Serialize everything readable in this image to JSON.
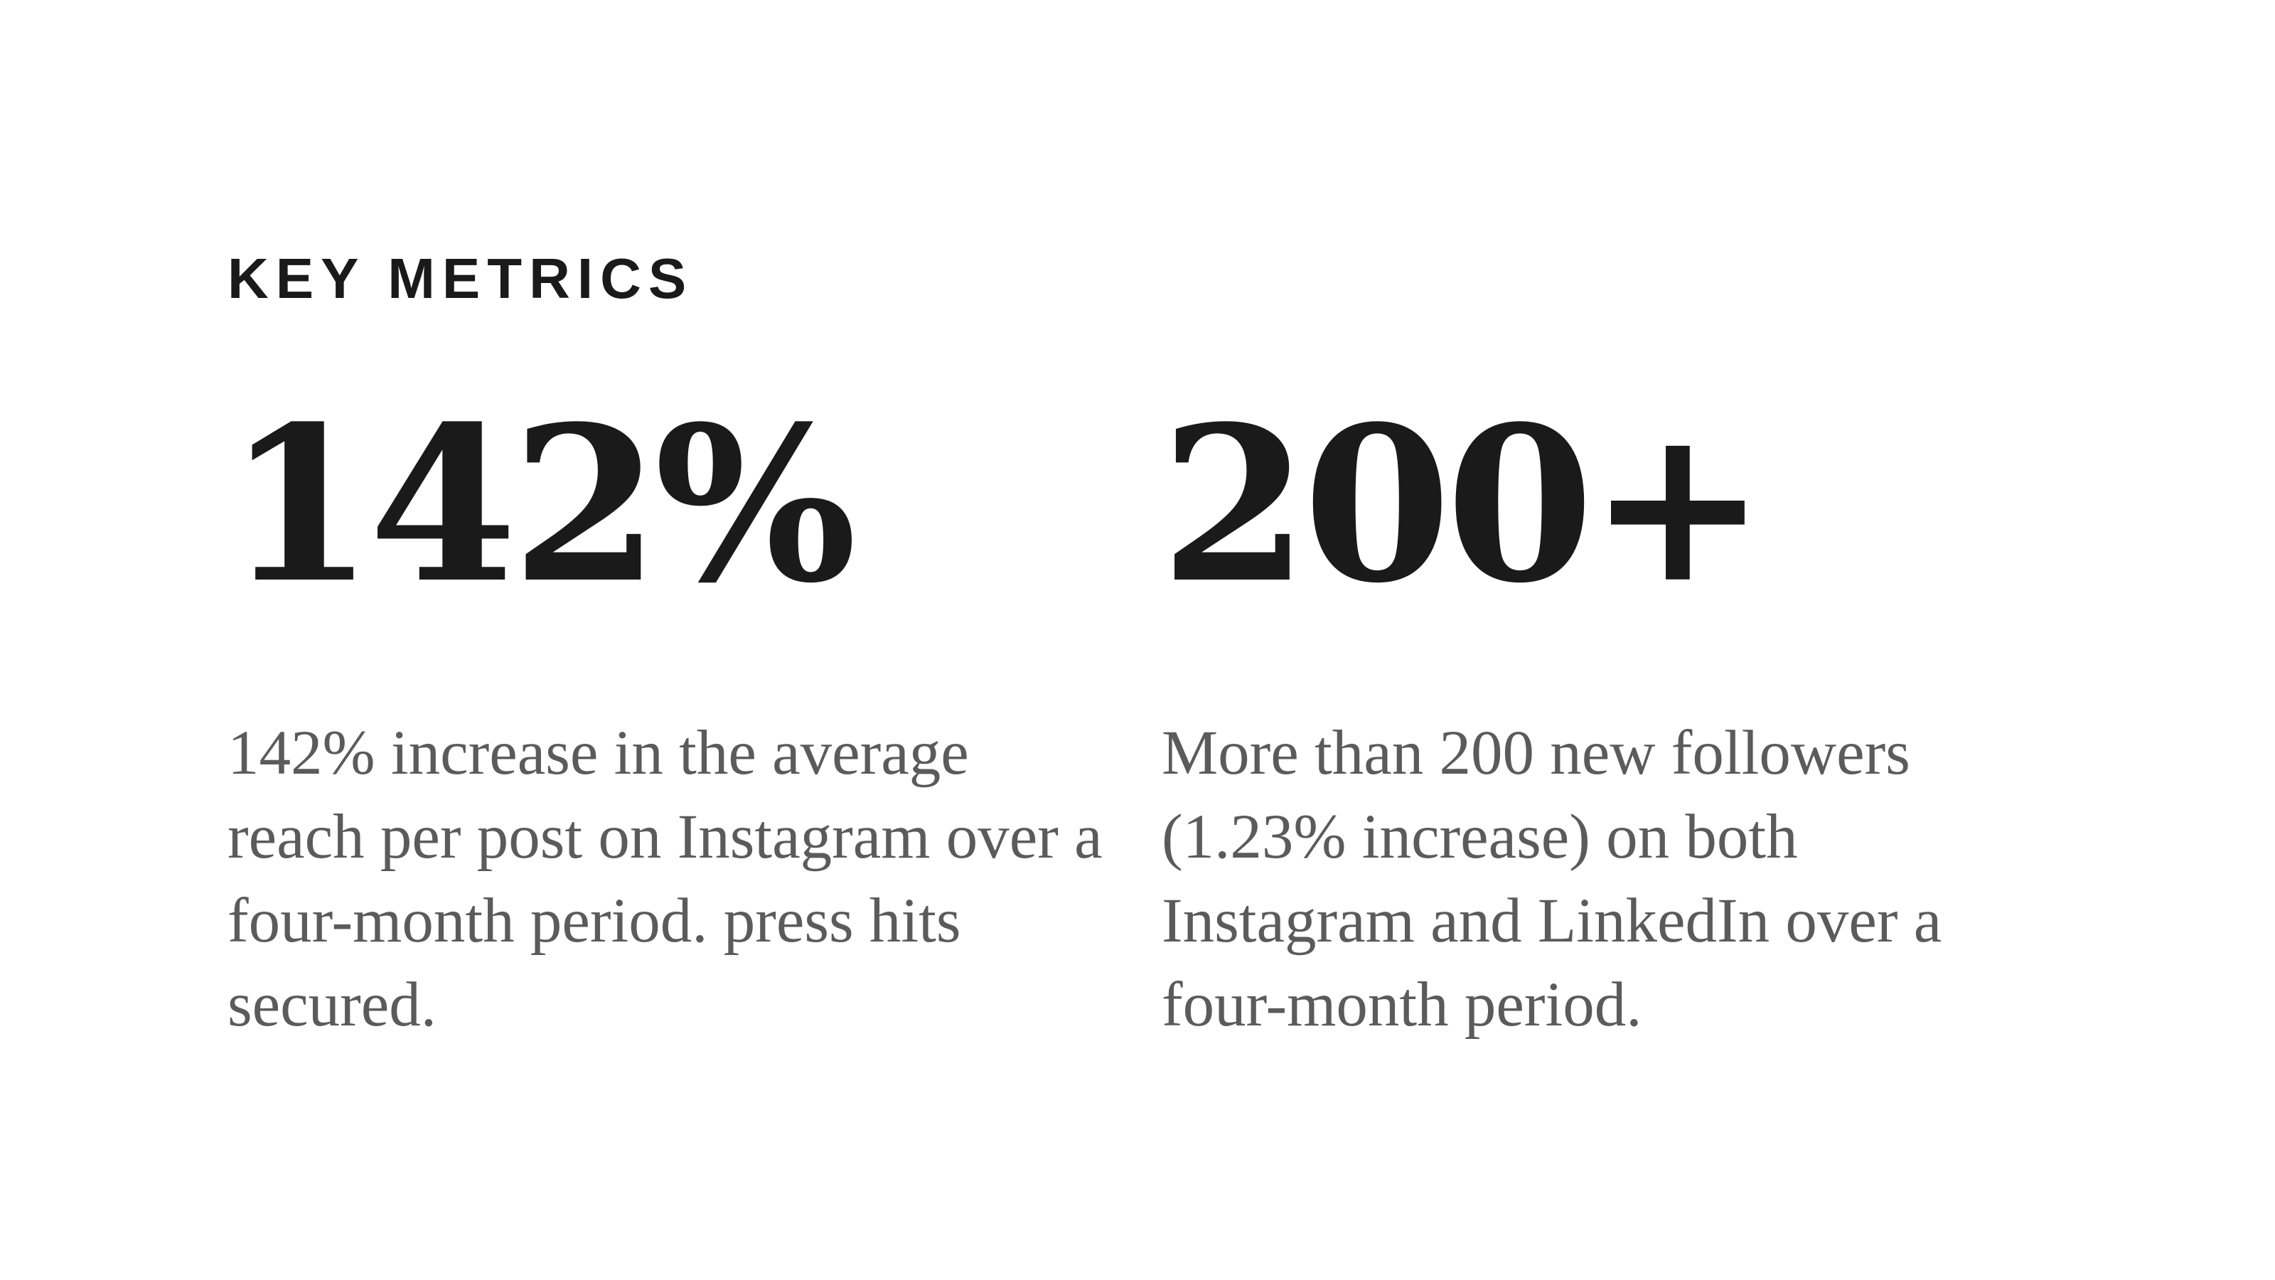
{
  "section": {
    "label": "KEY METRICS"
  },
  "metrics": [
    {
      "value": "142%",
      "description": "142% increase in the average reach per post on Instagram over a four-month period. press hits secured."
    },
    {
      "value": "200+",
      "description": "More than 200 new followers (1.23% increase) on both Instagram and LinkedIn over a four-month period."
    }
  ],
  "colors": {
    "background": "#ffffff",
    "heading": "#1a1a1a",
    "body_text": "#5b5b5b"
  }
}
